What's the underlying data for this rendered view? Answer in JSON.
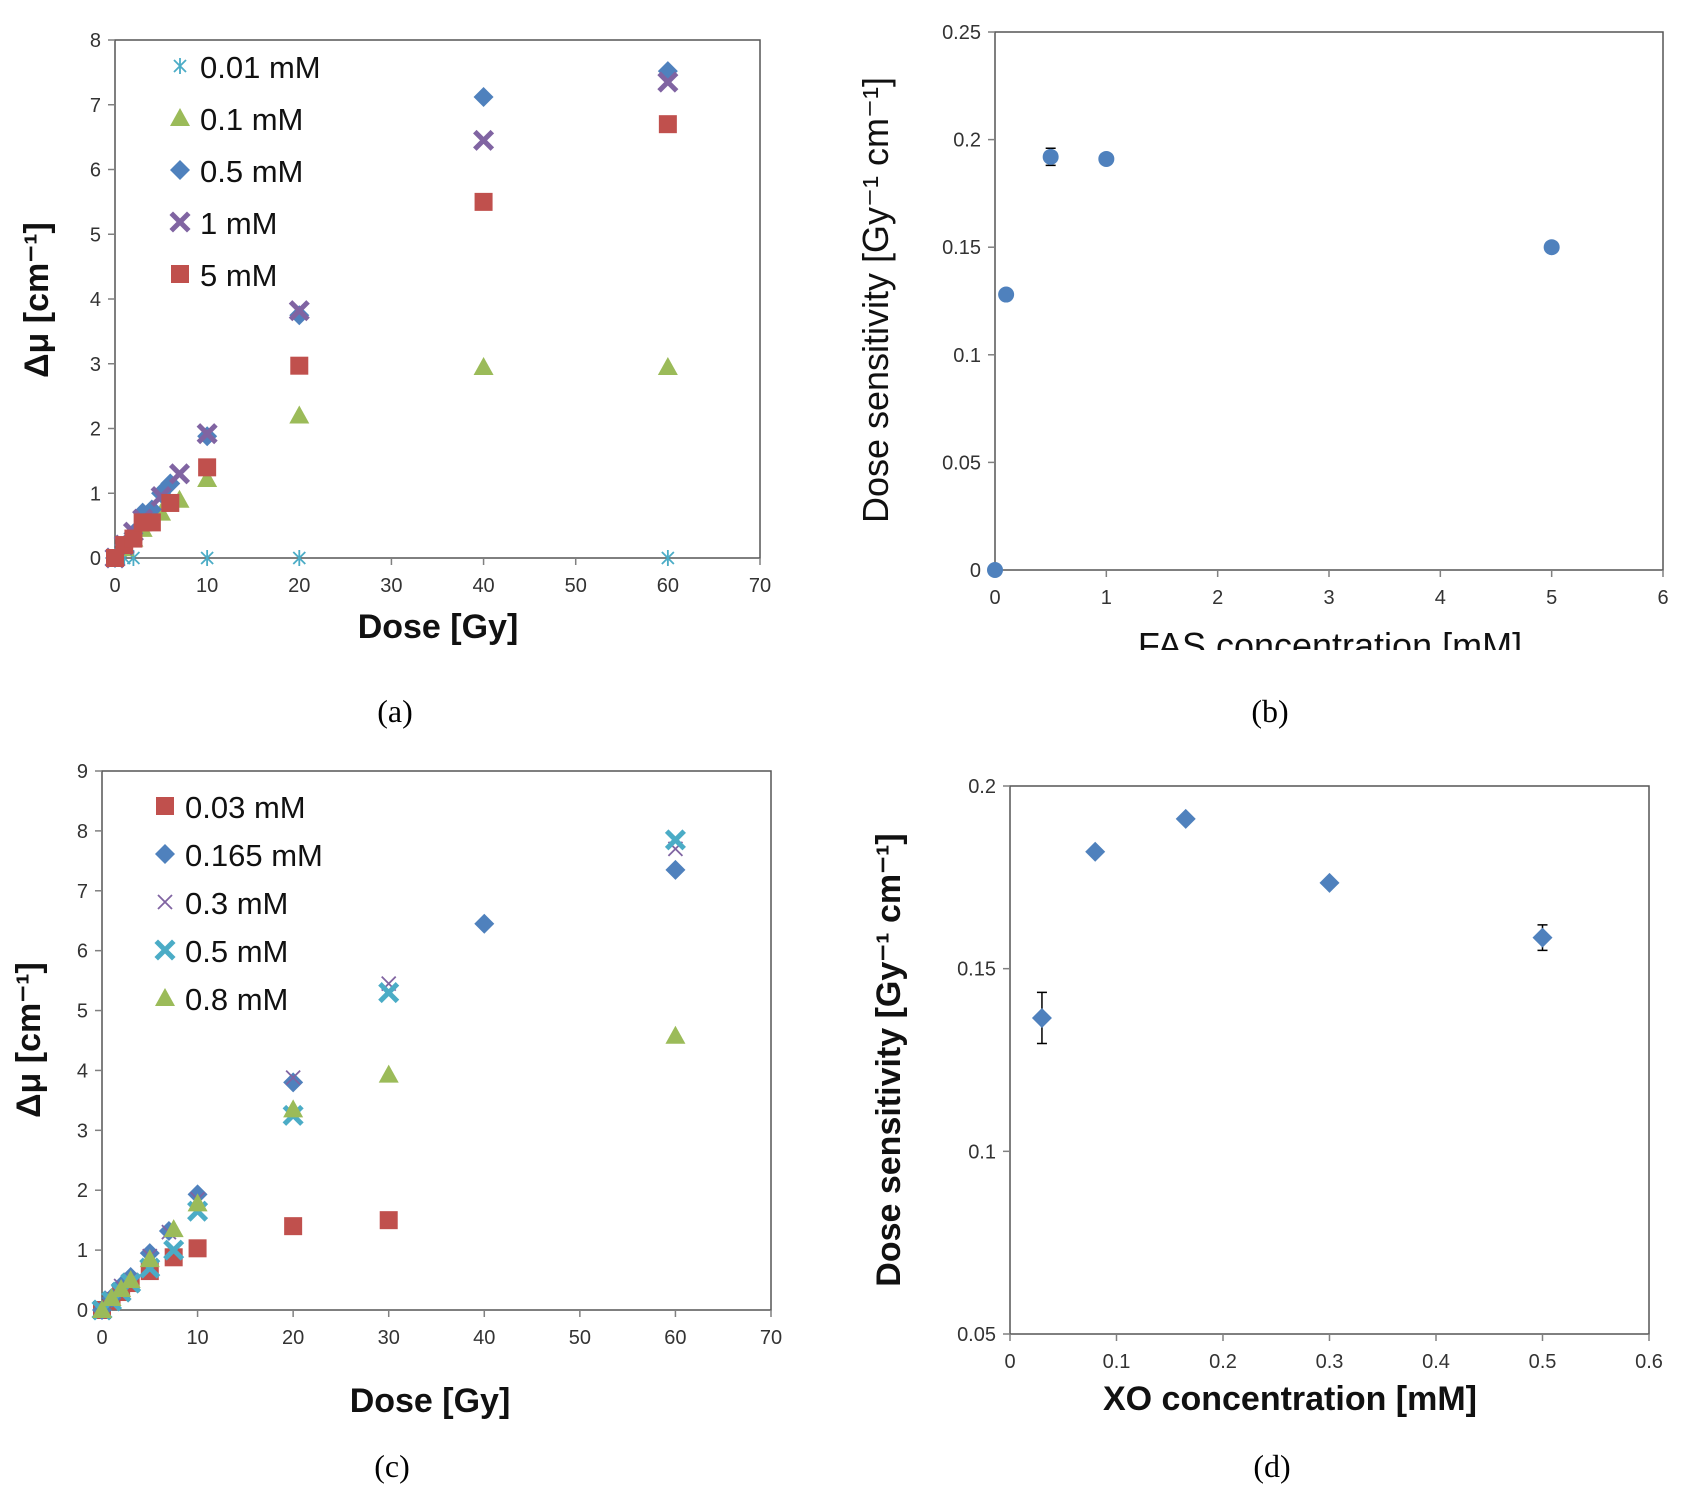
{
  "figure": {
    "captions": [
      "(a)",
      "(b)",
      "(c)",
      "(d)"
    ]
  },
  "colors": {
    "cyan": "#4BACC6",
    "green": "#9BBB59",
    "blue": "#4F81BD",
    "purple": "#8064A2",
    "red": "#C0504D",
    "axis": "#808080"
  },
  "chart_data": [
    {
      "id": "a",
      "type": "scatter",
      "title": "",
      "xlabel": "Dose [Gy]",
      "ylabel": "Δμ [cm⁻¹]",
      "xlim": [
        0,
        70
      ],
      "ylim": [
        0,
        8
      ],
      "xticks": [
        "0",
        "10",
        "20",
        "30",
        "40",
        "50",
        "60",
        "70"
      ],
      "yticks": [
        "0",
        "1",
        "2",
        "3",
        "4",
        "5",
        "6",
        "7",
        "8"
      ],
      "legend": "top-left",
      "grid": false,
      "series": [
        {
          "name": "0.01 mM",
          "marker": "star",
          "color": "#4BACC6",
          "x": [
            0,
            1,
            2,
            10,
            20,
            60
          ],
          "y": [
            0,
            0,
            0,
            0,
            0,
            0
          ]
        },
        {
          "name": "0.1 mM",
          "marker": "triangle",
          "color": "#9BBB59",
          "x": [
            0,
            1,
            2,
            3,
            5,
            7,
            10,
            20,
            40,
            60
          ],
          "y": [
            0,
            0.15,
            0.3,
            0.45,
            0.7,
            0.9,
            1.22,
            2.2,
            2.95,
            2.95
          ]
        },
        {
          "name": "0.5 mM",
          "marker": "diamond",
          "color": "#4F81BD",
          "x": [
            0,
            1,
            2,
            3,
            4,
            5,
            6,
            10,
            20,
            40,
            60
          ],
          "y": [
            0,
            0.2,
            0.38,
            0.7,
            0.75,
            1.0,
            1.15,
            1.88,
            3.75,
            7.12,
            7.52
          ]
        },
        {
          "name": "1 mM",
          "marker": "x",
          "color": "#8064A2",
          "x": [
            0,
            1,
            2,
            3,
            5,
            7,
            10,
            20,
            40,
            60
          ],
          "y": [
            0,
            0.2,
            0.4,
            0.6,
            0.95,
            1.3,
            1.92,
            3.82,
            6.45,
            7.35
          ]
        },
        {
          "name": "5 mM",
          "marker": "square",
          "color": "#C0504D",
          "x": [
            0,
            1,
            2,
            3,
            4,
            6,
            10,
            20,
            40,
            60
          ],
          "y": [
            0,
            0.2,
            0.3,
            0.55,
            0.55,
            0.85,
            1.4,
            2.97,
            5.5,
            6.7
          ]
        }
      ]
    },
    {
      "id": "b",
      "type": "scatter",
      "title": "",
      "xlabel": "FAS concentration [mM]",
      "ylabel": "Dose sensitivity [Gy⁻¹ cm⁻¹]",
      "xlim": [
        0,
        6
      ],
      "ylim": [
        0,
        0.25
      ],
      "xticks": [
        "0",
        "1",
        "2",
        "3",
        "4",
        "5",
        "6"
      ],
      "yticks": [
        "0",
        "0.05",
        "0.1",
        "0.15",
        "0.2",
        "0.25"
      ],
      "grid": false,
      "series": [
        {
          "name": "Dose sensitivity",
          "marker": "circle",
          "color": "#4F81BD",
          "x": [
            0,
            0.1,
            0.5,
            1,
            5
          ],
          "y": [
            0,
            0.128,
            0.192,
            0.191,
            0.15
          ],
          "yerr": [
            0,
            0,
            0.004,
            0.002,
            0
          ]
        }
      ]
    },
    {
      "id": "c",
      "type": "scatter",
      "title": "",
      "xlabel": "Dose [Gy]",
      "ylabel": "Δμ [cm⁻¹]",
      "xlim": [
        0,
        70
      ],
      "ylim": [
        0,
        9
      ],
      "xticks": [
        "0",
        "10",
        "20",
        "30",
        "40",
        "50",
        "60",
        "70"
      ],
      "yticks": [
        "0",
        "1",
        "2",
        "3",
        "4",
        "5",
        "6",
        "7",
        "8",
        "9"
      ],
      "legend": "top-left",
      "grid": false,
      "series": [
        {
          "name": "0.03 mM",
          "marker": "square",
          "color": "#C0504D",
          "x": [
            0,
            1,
            2,
            3,
            5,
            7.5,
            10,
            20,
            30
          ],
          "y": [
            0,
            0.15,
            0.3,
            0.45,
            0.65,
            0.88,
            1.03,
            1.4,
            1.5
          ]
        },
        {
          "name": "0.165 mM",
          "marker": "diamond",
          "color": "#4F81BD",
          "x": [
            0,
            1,
            2,
            3,
            5,
            7,
            10,
            20,
            40,
            60
          ],
          "y": [
            0,
            0.2,
            0.4,
            0.55,
            0.95,
            1.32,
            1.93,
            3.8,
            6.45,
            7.35
          ]
        },
        {
          "name": "0.3 mM",
          "marker": "x-thin",
          "color": "#8064A2",
          "x": [
            0,
            1,
            2,
            3,
            5,
            7,
            10,
            20,
            30,
            60
          ],
          "y": [
            0,
            0.2,
            0.4,
            0.5,
            0.9,
            1.3,
            1.85,
            3.88,
            5.45,
            7.7
          ]
        },
        {
          "name": "0.5 mM",
          "marker": "x",
          "color": "#4BACC6",
          "x": [
            0,
            1,
            2,
            3,
            5,
            7.5,
            10,
            20,
            30,
            60
          ],
          "y": [
            0,
            0.15,
            0.3,
            0.45,
            0.7,
            1.0,
            1.65,
            3.25,
            5.3,
            7.85
          ]
        },
        {
          "name": "0.8 mM",
          "marker": "triangle",
          "color": "#9BBB59",
          "x": [
            0,
            1,
            2,
            3,
            5,
            7.5,
            10,
            20,
            30,
            60
          ],
          "y": [
            0,
            0.2,
            0.35,
            0.5,
            0.85,
            1.35,
            1.78,
            3.35,
            3.93,
            4.58
          ]
        }
      ]
    },
    {
      "id": "d",
      "type": "scatter",
      "title": "",
      "xlabel": "XO concentration [mM]",
      "ylabel": "Dose sensitivity [Gy⁻¹ cm⁻¹]",
      "xlim": [
        0,
        0.6
      ],
      "ylim": [
        0.05,
        0.2
      ],
      "xticks": [
        "0",
        "0.1",
        "0.2",
        "0.3",
        "0.4",
        "0.5",
        "0.6"
      ],
      "yticks": [
        "0.05",
        "0.1",
        "0.15",
        "0.2"
      ],
      "grid": false,
      "series": [
        {
          "name": "Dose sensitivity",
          "marker": "diamond",
          "color": "#4F81BD",
          "x": [
            0.03,
            0.08,
            0.165,
            0.3,
            0.5
          ],
          "y": [
            0.1365,
            0.182,
            0.191,
            0.1735,
            0.1585
          ],
          "yerr": [
            0.007,
            0,
            0,
            0,
            0.0035
          ]
        }
      ]
    }
  ]
}
